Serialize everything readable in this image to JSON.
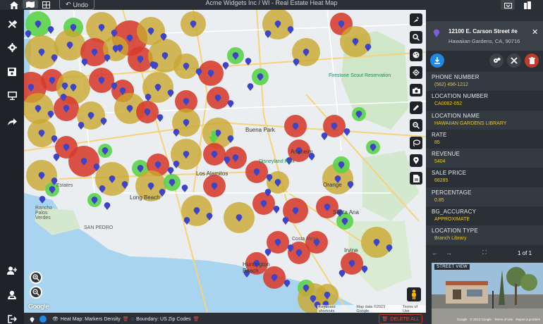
{
  "app": {
    "title": "Acme Widgets Inc / WI - Real Estate Heat Map",
    "undo_label": "Undo"
  },
  "colors": {
    "panel": "#2b3036",
    "accent_yellow": "#e8c82e",
    "heat_red": "#d63b2b",
    "heat_gold": "#c9a830",
    "heat_green": "#5ad34a",
    "marker": "#3d44c8"
  },
  "left_toolbar": {
    "top_icons": [
      "tools-icon",
      "settings-icon",
      "save-icon",
      "presentation-icon",
      "share-icon"
    ],
    "bottom_icons": [
      "add-user-icon",
      "user-icon",
      "logout-icon"
    ]
  },
  "map": {
    "labels": {
      "firestone": "Firestone Scout Reservation",
      "buena_park": "Buena Park",
      "anaheim": "Anaheim",
      "disneyland": "Disneyland Park",
      "los_alamitos": "Los Alamitos",
      "orange": "Orange",
      "santa_ana": "Santa Ana",
      "irvine": "Irvine",
      "huntington": "Huntington Beach",
      "rancho": "Rancho Palos Verdes",
      "san_pedro": "SAN PEDRO",
      "estates": "Estates",
      "long_beach": "Long Beach",
      "costa_mesa": "Costa Mesa"
    },
    "footer": [
      "Keyboard shortcuts",
      "Map data ©2023 Google",
      "Terms of Use"
    ],
    "google": "Google",
    "tools": [
      "paint-icon",
      "search-icon",
      "palette-icon",
      "locate-icon",
      "camera-icon",
      "pen-icon",
      "zoom-area-icon",
      "lasso-icon",
      "pin-icon",
      "document-icon"
    ]
  },
  "bottom_bar": {
    "heatmap_label": "Heat Map: Markers Density",
    "boundary_label": "Boundary: US Zip Codes",
    "delete_label": "DELETE ALL"
  },
  "panel": {
    "address_line1": "12100 E. Carson Street #e",
    "address_line2": "Hawaiian Gardens, CA, 90716",
    "fields": [
      {
        "label": "PHONE NUMBER",
        "value": "(562) 496-1212"
      },
      {
        "label": "LOCATION NUMBER",
        "value": "CA0062-052"
      },
      {
        "label": "LOCATION NAME",
        "value": "HAWAIIAN GARDENS LIBRARY"
      },
      {
        "label": "RATE",
        "value": "85"
      },
      {
        "label": "REVENUE",
        "value": "5404"
      },
      {
        "label": "SALE PRICE",
        "value": "68285"
      },
      {
        "label": "PERCENTAGE",
        "value": "0.85"
      },
      {
        "label": "BG_ACCURACY",
        "value": "APPROXIMATE"
      },
      {
        "label": "LOCATION TYPE",
        "value": "Branch Library"
      }
    ],
    "pager": "1 of 1",
    "street_view_label": "STREET VIEW",
    "street_view_footer": [
      "Google",
      "© 2023 Google",
      "Terms of Use",
      "Report a problem"
    ]
  }
}
